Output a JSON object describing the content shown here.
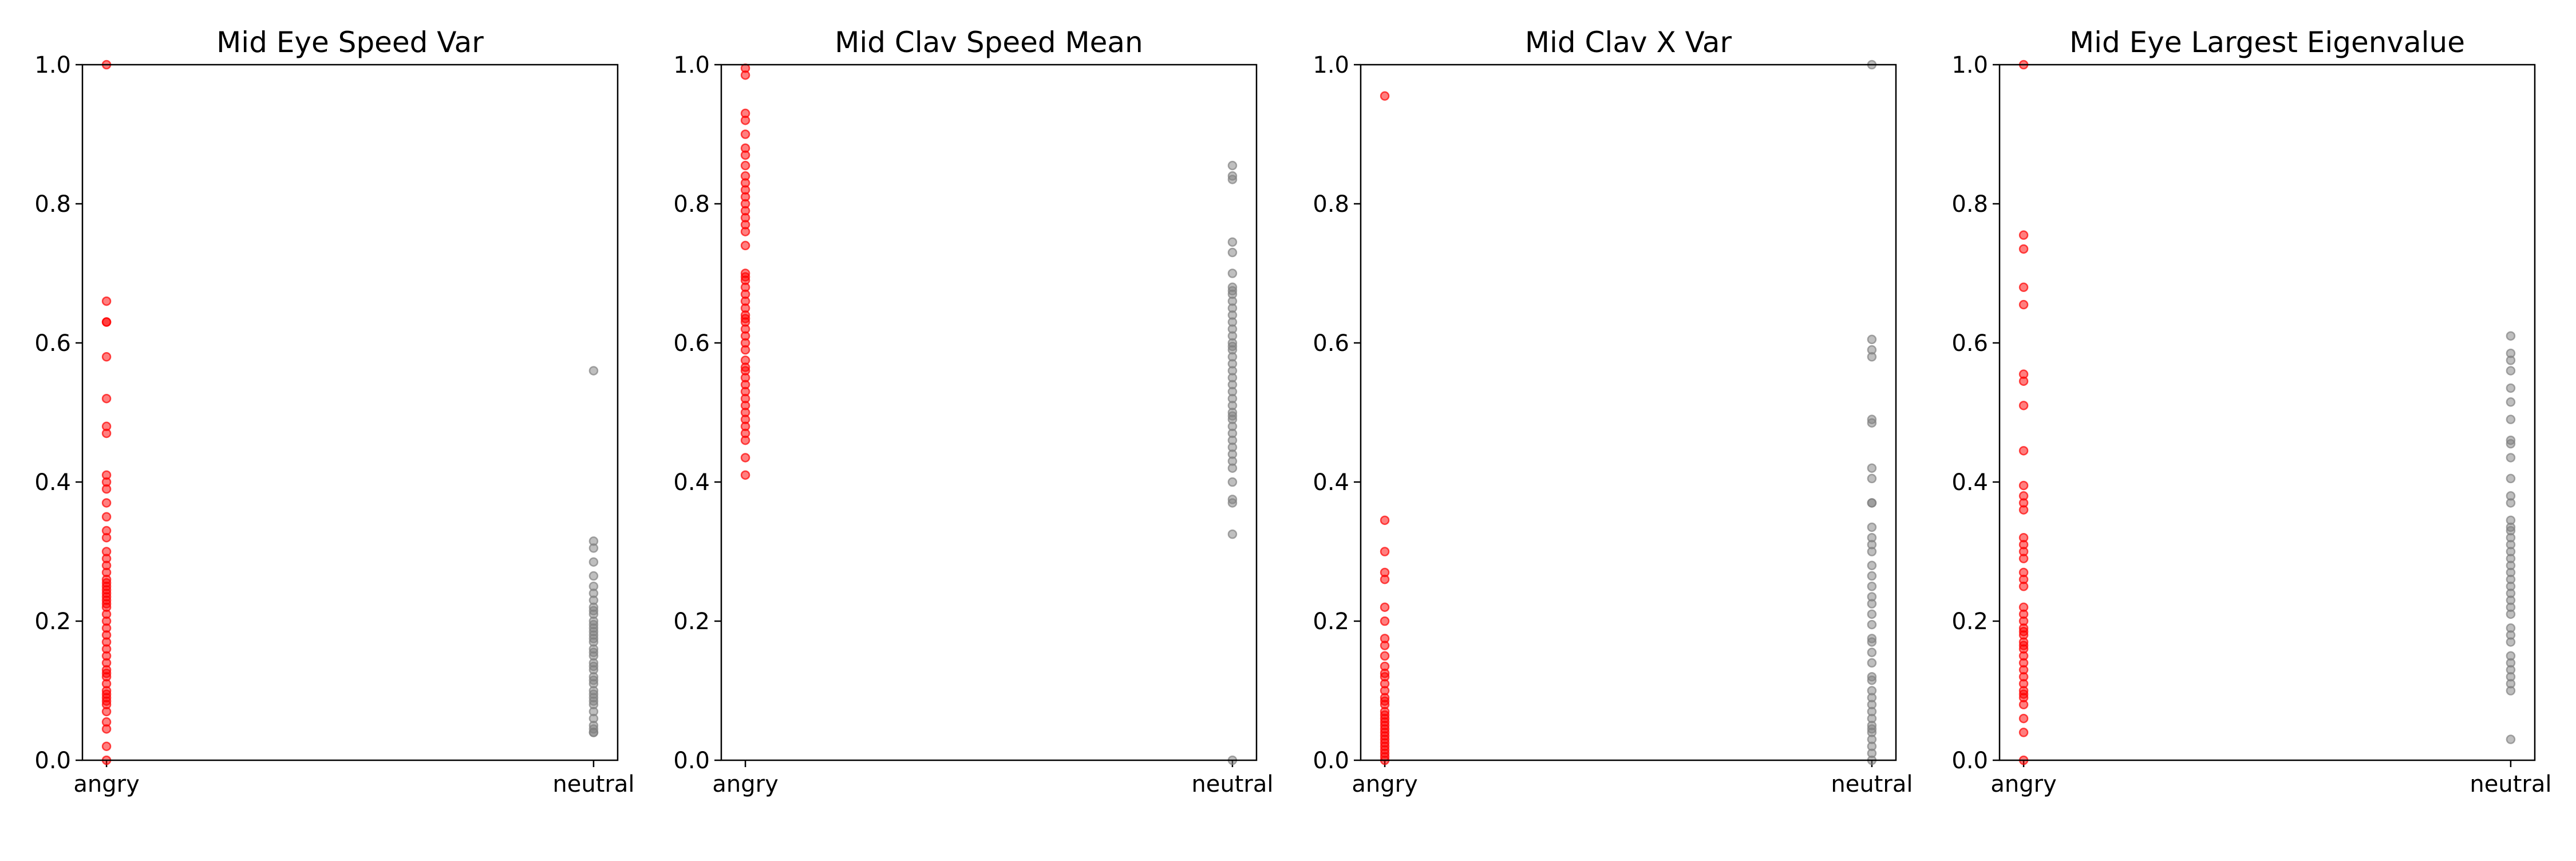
{
  "chart_data": [
    {
      "type": "scatter",
      "title": "Mid Eye Speed Var",
      "categories": [
        "angry",
        "neutral"
      ],
      "ylim": [
        0,
        1
      ],
      "yticks": [
        "0.0",
        "0.2",
        "0.4",
        "0.6",
        "0.8",
        "1.0"
      ],
      "series": [
        {
          "category": "angry",
          "color": "#ff0000",
          "values": [
            1.0,
            0.66,
            0.63,
            0.63,
            0.58,
            0.52,
            0.48,
            0.47,
            0.41,
            0.4,
            0.39,
            0.37,
            0.35,
            0.33,
            0.32,
            0.3,
            0.29,
            0.28,
            0.27,
            0.26,
            0.255,
            0.25,
            0.245,
            0.24,
            0.235,
            0.23,
            0.225,
            0.22,
            0.21,
            0.2,
            0.19,
            0.18,
            0.17,
            0.16,
            0.15,
            0.14,
            0.13,
            0.125,
            0.12,
            0.11,
            0.1,
            0.095,
            0.09,
            0.085,
            0.08,
            0.07,
            0.055,
            0.045,
            0.02,
            0.0
          ]
        },
        {
          "category": "neutral",
          "color": "#808080",
          "values": [
            0.56,
            0.315,
            0.305,
            0.285,
            0.265,
            0.25,
            0.24,
            0.23,
            0.22,
            0.215,
            0.21,
            0.2,
            0.195,
            0.19,
            0.185,
            0.18,
            0.175,
            0.17,
            0.16,
            0.155,
            0.15,
            0.14,
            0.135,
            0.13,
            0.12,
            0.115,
            0.11,
            0.1,
            0.095,
            0.09,
            0.085,
            0.08,
            0.07,
            0.06,
            0.05,
            0.045,
            0.04,
            0.04
          ]
        }
      ]
    },
    {
      "type": "scatter",
      "title": "Mid Clav Speed Mean",
      "categories": [
        "angry",
        "neutral"
      ],
      "ylim": [
        0,
        1
      ],
      "yticks": [
        "0.0",
        "0.2",
        "0.4",
        "0.6",
        "0.8",
        "1.0"
      ],
      "series": [
        {
          "category": "angry",
          "color": "#ff0000",
          "values": [
            0.995,
            0.985,
            0.93,
            0.92,
            0.9,
            0.88,
            0.87,
            0.855,
            0.84,
            0.83,
            0.82,
            0.81,
            0.8,
            0.79,
            0.78,
            0.77,
            0.76,
            0.74,
            0.7,
            0.695,
            0.69,
            0.68,
            0.67,
            0.66,
            0.65,
            0.64,
            0.635,
            0.63,
            0.62,
            0.61,
            0.6,
            0.59,
            0.575,
            0.565,
            0.56,
            0.55,
            0.54,
            0.53,
            0.52,
            0.51,
            0.5,
            0.49,
            0.48,
            0.47,
            0.46,
            0.435,
            0.41
          ]
        },
        {
          "category": "neutral",
          "color": "#808080",
          "values": [
            0.855,
            0.84,
            0.835,
            0.745,
            0.73,
            0.7,
            0.68,
            0.675,
            0.67,
            0.66,
            0.65,
            0.64,
            0.63,
            0.62,
            0.61,
            0.6,
            0.595,
            0.59,
            0.58,
            0.57,
            0.56,
            0.55,
            0.54,
            0.53,
            0.52,
            0.51,
            0.5,
            0.495,
            0.49,
            0.48,
            0.47,
            0.46,
            0.45,
            0.44,
            0.43,
            0.42,
            0.4,
            0.375,
            0.37,
            0.325,
            0.0
          ]
        }
      ]
    },
    {
      "type": "scatter",
      "title": "Mid Clav X Var",
      "categories": [
        "angry",
        "neutral"
      ],
      "ylim": [
        0,
        1
      ],
      "yticks": [
        "0.0",
        "0.2",
        "0.4",
        "0.6",
        "0.8",
        "1.0"
      ],
      "series": [
        {
          "category": "angry",
          "color": "#ff0000",
          "values": [
            0.955,
            0.345,
            0.3,
            0.27,
            0.26,
            0.22,
            0.2,
            0.175,
            0.165,
            0.15,
            0.135,
            0.125,
            0.12,
            0.11,
            0.1,
            0.09,
            0.085,
            0.08,
            0.07,
            0.065,
            0.06,
            0.055,
            0.05,
            0.045,
            0.04,
            0.035,
            0.03,
            0.025,
            0.02,
            0.015,
            0.01,
            0.005,
            0.0
          ]
        },
        {
          "category": "neutral",
          "color": "#808080",
          "values": [
            1.0,
            0.605,
            0.59,
            0.58,
            0.49,
            0.485,
            0.42,
            0.405,
            0.37,
            0.37,
            0.335,
            0.32,
            0.31,
            0.3,
            0.28,
            0.265,
            0.25,
            0.235,
            0.225,
            0.21,
            0.195,
            0.175,
            0.17,
            0.155,
            0.14,
            0.12,
            0.115,
            0.1,
            0.09,
            0.08,
            0.07,
            0.06,
            0.05,
            0.045,
            0.04,
            0.03,
            0.02,
            0.01,
            0.0
          ]
        }
      ]
    },
    {
      "type": "scatter",
      "title": "Mid Eye Largest Eigenvalue",
      "categories": [
        "angry",
        "neutral"
      ],
      "ylim": [
        0,
        1
      ],
      "yticks": [
        "0.0",
        "0.2",
        "0.4",
        "0.6",
        "0.8",
        "1.0"
      ],
      "series": [
        {
          "category": "angry",
          "color": "#ff0000",
          "values": [
            1.0,
            0.755,
            0.735,
            0.68,
            0.655,
            0.555,
            0.545,
            0.51,
            0.445,
            0.395,
            0.38,
            0.37,
            0.36,
            0.32,
            0.31,
            0.3,
            0.29,
            0.27,
            0.26,
            0.25,
            0.22,
            0.21,
            0.2,
            0.19,
            0.185,
            0.18,
            0.17,
            0.165,
            0.16,
            0.15,
            0.14,
            0.13,
            0.12,
            0.11,
            0.1,
            0.095,
            0.09,
            0.08,
            0.06,
            0.04,
            0.0
          ]
        },
        {
          "category": "neutral",
          "color": "#808080",
          "values": [
            0.61,
            0.585,
            0.575,
            0.56,
            0.535,
            0.515,
            0.49,
            0.46,
            0.455,
            0.435,
            0.405,
            0.38,
            0.37,
            0.345,
            0.335,
            0.33,
            0.32,
            0.31,
            0.3,
            0.29,
            0.28,
            0.27,
            0.26,
            0.25,
            0.24,
            0.23,
            0.22,
            0.21,
            0.19,
            0.18,
            0.17,
            0.15,
            0.14,
            0.13,
            0.12,
            0.11,
            0.1,
            0.03
          ]
        }
      ]
    }
  ]
}
